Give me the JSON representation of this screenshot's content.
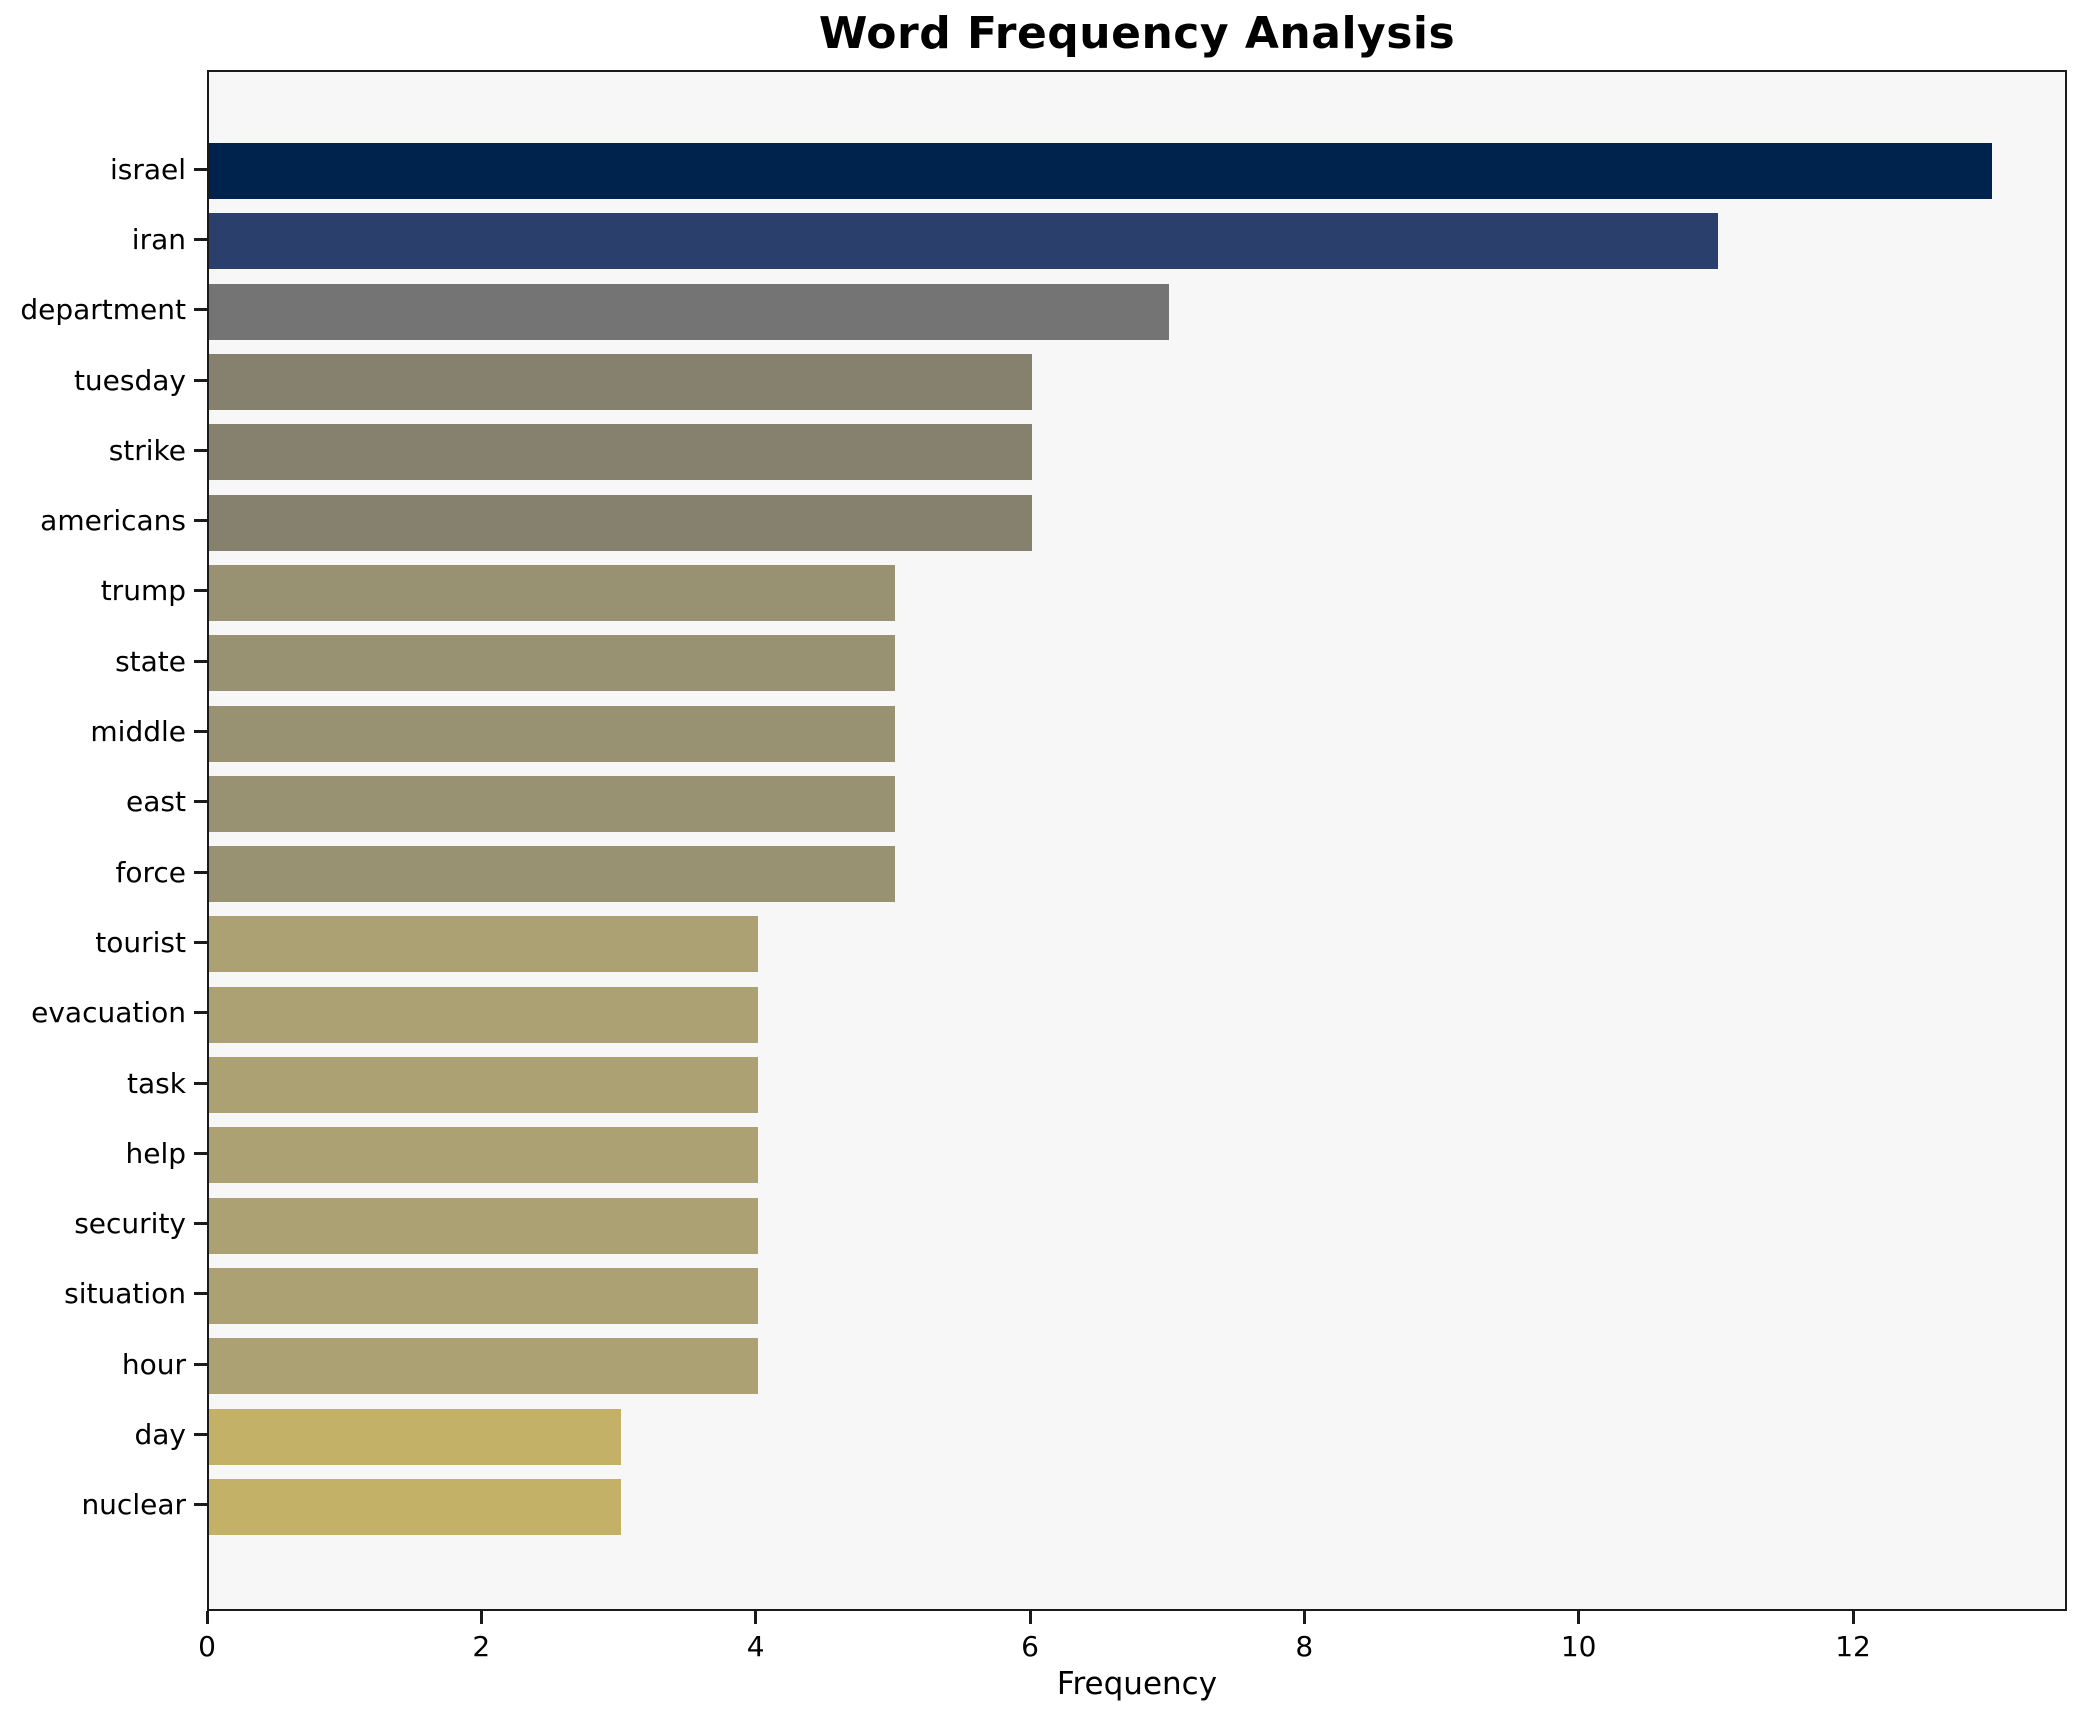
{
  "chart_data": {
    "type": "bar",
    "orientation": "horizontal",
    "title": "Word Frequency Analysis",
    "xlabel": "Frequency",
    "ylabel": "",
    "xlim": [
      0,
      13.56
    ],
    "x_ticks": [
      0,
      2,
      4,
      6,
      8,
      10,
      12
    ],
    "grid": false,
    "legend": "none",
    "categories": [
      "israel",
      "iran",
      "department",
      "tuesday",
      "strike",
      "americans",
      "trump",
      "state",
      "middle",
      "east",
      "force",
      "tourist",
      "evacuation",
      "task",
      "help",
      "security",
      "situation",
      "hour",
      "day",
      "nuclear"
    ],
    "values": [
      13,
      11,
      7,
      6,
      6,
      6,
      5,
      5,
      5,
      5,
      5,
      4,
      4,
      4,
      4,
      4,
      4,
      4,
      3,
      3
    ],
    "bar_colors": [
      "#00234E",
      "#2A3F6C",
      "#747474",
      "#85816E",
      "#85816E",
      "#85816E",
      "#989272",
      "#989272",
      "#989272",
      "#989272",
      "#989272",
      "#ACA172",
      "#ACA172",
      "#ACA172",
      "#ACA172",
      "#ACA172",
      "#ACA172",
      "#ACA172",
      "#C2B166",
      "#C2B166"
    ]
  },
  "style": {
    "figure_bg": "#FFFFFF",
    "plot_bg": "#F7F7F7",
    "spine_color": "#1A1A1A",
    "text_color": "#000000"
  }
}
